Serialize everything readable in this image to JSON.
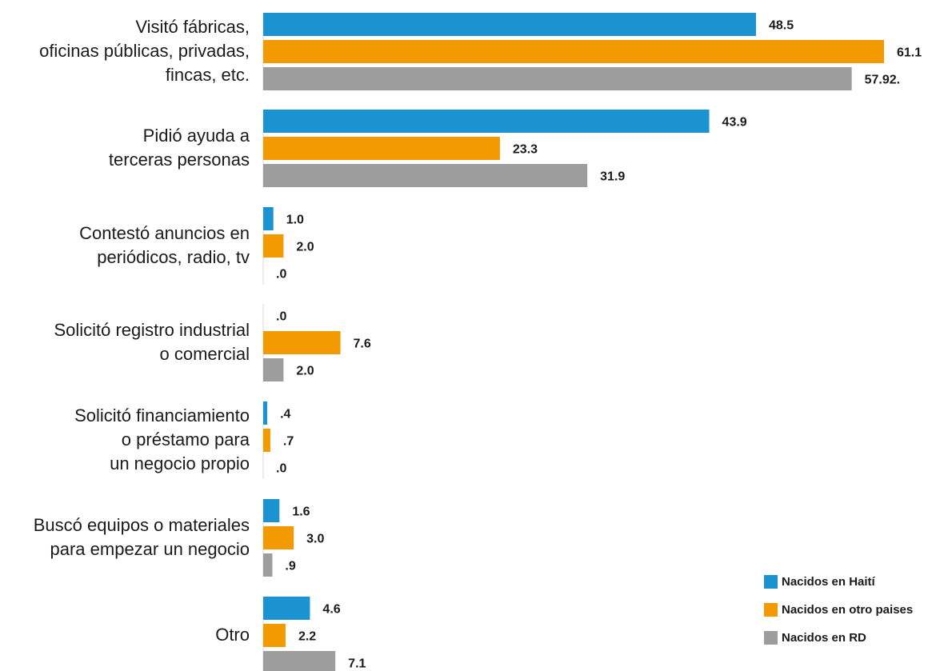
{
  "chart_data": {
    "type": "bar",
    "orientation": "horizontal",
    "categories": [
      [
        "Visitó fábricas,",
        "oficinas públicas, privadas,",
        "fincas, etc."
      ],
      [
        "Pidió ayuda a",
        "terceras personas"
      ],
      [
        "Contestó anuncios en",
        "periódicos, radio, tv"
      ],
      [
        "Solicitó registro industrial",
        "o comercial"
      ],
      [
        "Solicitó financiamiento",
        "o préstamo para",
        "un negocio propio"
      ],
      [
        "Buscó equipos o materiales",
        "para empezar un negocio"
      ],
      [
        "Otro"
      ]
    ],
    "series": [
      {
        "name": "Nacidos en Haití",
        "color": "#1c93d1",
        "values": [
          48.5,
          43.9,
          1.0,
          0.0,
          0.4,
          1.6,
          4.6
        ],
        "labels": [
          "48.5",
          "43.9",
          "1.0",
          ".0",
          ".4",
          "1.6",
          "4.6"
        ]
      },
      {
        "name": "Nacidos en otro paises",
        "color": "#f29a00",
        "values": [
          61.1,
          23.3,
          2.0,
          7.6,
          0.7,
          3.0,
          2.2
        ],
        "labels": [
          "61.1",
          "23.3",
          "2.0",
          "7.6",
          ".7",
          "3.0",
          "2.2"
        ]
      },
      {
        "name": "Nacidos en RD",
        "color": "#9d9d9d",
        "values": [
          57.92,
          31.9,
          0.0,
          2.0,
          0.0,
          0.9,
          7.1
        ],
        "labels": [
          "57.92.",
          "31.9",
          ".0",
          "2.0",
          ".0",
          ".9",
          "7.1"
        ]
      }
    ],
    "xlim": [
      0,
      61.1
    ],
    "grid": false,
    "legend_position": "bottom-right"
  }
}
